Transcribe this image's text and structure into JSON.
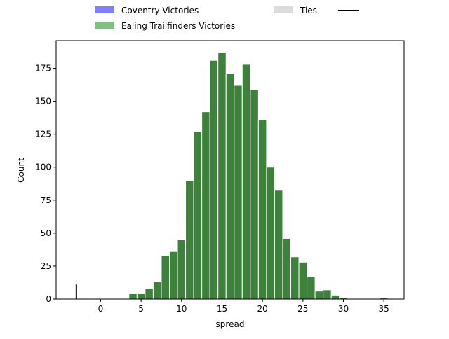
{
  "chart_data": {
    "type": "bar",
    "xlabel": "spread",
    "ylabel": "Count",
    "xlim": [
      -5.5,
      37.5
    ],
    "ylim": [
      0,
      196
    ],
    "x_ticks": [
      0,
      5,
      10,
      15,
      20,
      25,
      30,
      35
    ],
    "y_ticks": [
      0,
      25,
      50,
      75,
      100,
      125,
      150,
      175
    ],
    "bin_width": 1,
    "legend": {
      "placement": "top-center",
      "entries": [
        {
          "label": "Coventry Victories",
          "color": "#7f7fff",
          "kind": "patch"
        },
        {
          "label": "Ealing Trailfinders Victories",
          "color": "#7fbf7f",
          "kind": "patch"
        },
        {
          "label": "Ties",
          "color": "#dcdcdc",
          "kind": "patch"
        },
        {
          "label": "",
          "color": "#000000",
          "kind": "line"
        }
      ]
    },
    "series": [
      {
        "name": "Ealing Trailfinders Victories",
        "color": "#3d813d",
        "bins": [
          {
            "x": 3.5,
            "count": 4
          },
          {
            "x": 4.5,
            "count": 4
          },
          {
            "x": 5.5,
            "count": 8
          },
          {
            "x": 6.5,
            "count": 13
          },
          {
            "x": 7.5,
            "count": 33
          },
          {
            "x": 8.5,
            "count": 36
          },
          {
            "x": 9.5,
            "count": 45
          },
          {
            "x": 10.5,
            "count": 90
          },
          {
            "x": 11.5,
            "count": 127
          },
          {
            "x": 12.5,
            "count": 142
          },
          {
            "x": 13.5,
            "count": 181
          },
          {
            "x": 14.5,
            "count": 187
          },
          {
            "x": 15.5,
            "count": 171
          },
          {
            "x": 16.5,
            "count": 162
          },
          {
            "x": 17.5,
            "count": 178
          },
          {
            "x": 18.5,
            "count": 159
          },
          {
            "x": 19.5,
            "count": 136
          },
          {
            "x": 20.5,
            "count": 100
          },
          {
            "x": 21.5,
            "count": 83
          },
          {
            "x": 22.5,
            "count": 46
          },
          {
            "x": 23.5,
            "count": 32
          },
          {
            "x": 24.5,
            "count": 28
          },
          {
            "x": 25.5,
            "count": 17
          },
          {
            "x": 26.5,
            "count": 6
          },
          {
            "x": 27.5,
            "count": 7
          },
          {
            "x": 28.5,
            "count": 3
          },
          {
            "x": 29.5,
            "count": 1
          },
          {
            "x": 34.5,
            "count": 1
          }
        ]
      }
    ],
    "line_mark": {
      "x": -3.0,
      "y_from": 0,
      "y_to": 11,
      "color": "#000000"
    }
  }
}
